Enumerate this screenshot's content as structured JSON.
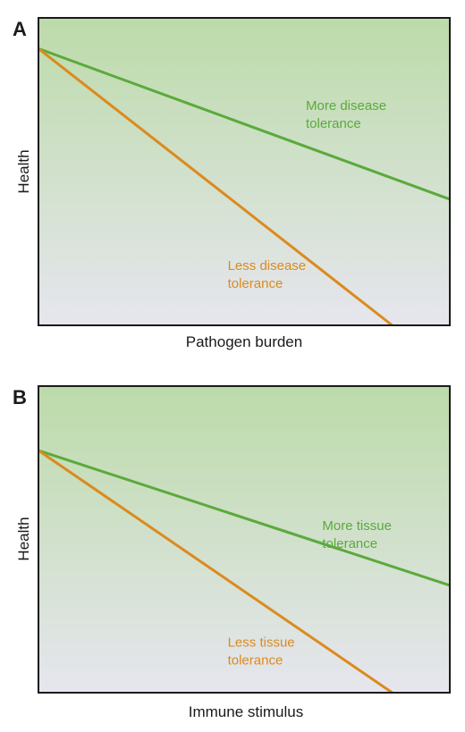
{
  "chart_data": [
    {
      "type": "line",
      "panel_label": "A",
      "xlabel": "Pathogen burden",
      "ylabel": "Health",
      "xlim": [
        0,
        1
      ],
      "ylim": [
        0,
        1
      ],
      "grid": false,
      "series": [
        {
          "name": "More disease\ntolerance",
          "label_lines": [
            "More disease",
            "tolerance"
          ],
          "color": "#5aaa3c",
          "x": [
            0,
            1
          ],
          "y": [
            0.9,
            0.41
          ],
          "label_at": [
            0.65,
            0.7
          ]
        },
        {
          "name": "Less disease\ntolerance",
          "label_lines": [
            "Less disease",
            "tolerance"
          ],
          "color": "#dc8a1e",
          "x": [
            0,
            0.86
          ],
          "y": [
            0.9,
            0.0
          ],
          "label_at": [
            0.46,
            0.18
          ]
        }
      ]
    },
    {
      "type": "line",
      "panel_label": "B",
      "xlabel": "Immune stimulus",
      "ylabel": "Health",
      "xlim": [
        0,
        1
      ],
      "ylim": [
        0,
        1
      ],
      "grid": false,
      "series": [
        {
          "name": "More tissue\ntolerance",
          "label_lines": [
            "More tissue",
            "tolerance"
          ],
          "color": "#5aaa3c",
          "x": [
            0,
            1
          ],
          "y": [
            0.79,
            0.35
          ],
          "label_at": [
            0.69,
            0.53
          ]
        },
        {
          "name": "Less tissue\ntolerance",
          "label_lines": [
            "Less tissue",
            "tolerance"
          ],
          "color": "#dc8a1e",
          "x": [
            0,
            0.86
          ],
          "y": [
            0.79,
            0.0
          ],
          "label_at": [
            0.46,
            0.15
          ]
        }
      ]
    }
  ],
  "colors": {
    "bg_top": "#bcdba9",
    "bg_bottom": "#e6e6ee",
    "frame": "#1a1a1a"
  }
}
